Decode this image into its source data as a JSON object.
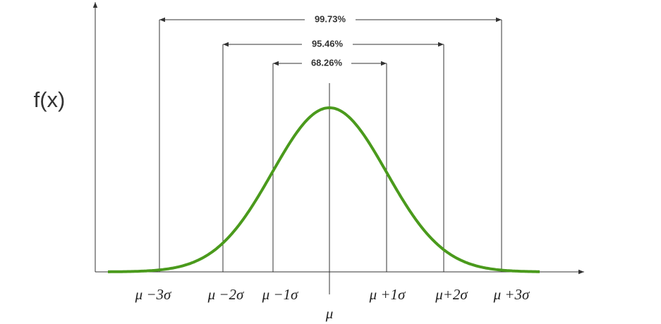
{
  "y_axis_label": "f(x)",
  "intervals": [
    {
      "label": "99.73%"
    },
    {
      "label": "95.46%"
    },
    {
      "label": "68.26%"
    }
  ],
  "x_labels": [
    "μ −3σ",
    "μ −2σ",
    "μ −1σ",
    "μ +1σ",
    "μ+2σ",
    "μ +3σ"
  ],
  "mean_label": "μ"
}
